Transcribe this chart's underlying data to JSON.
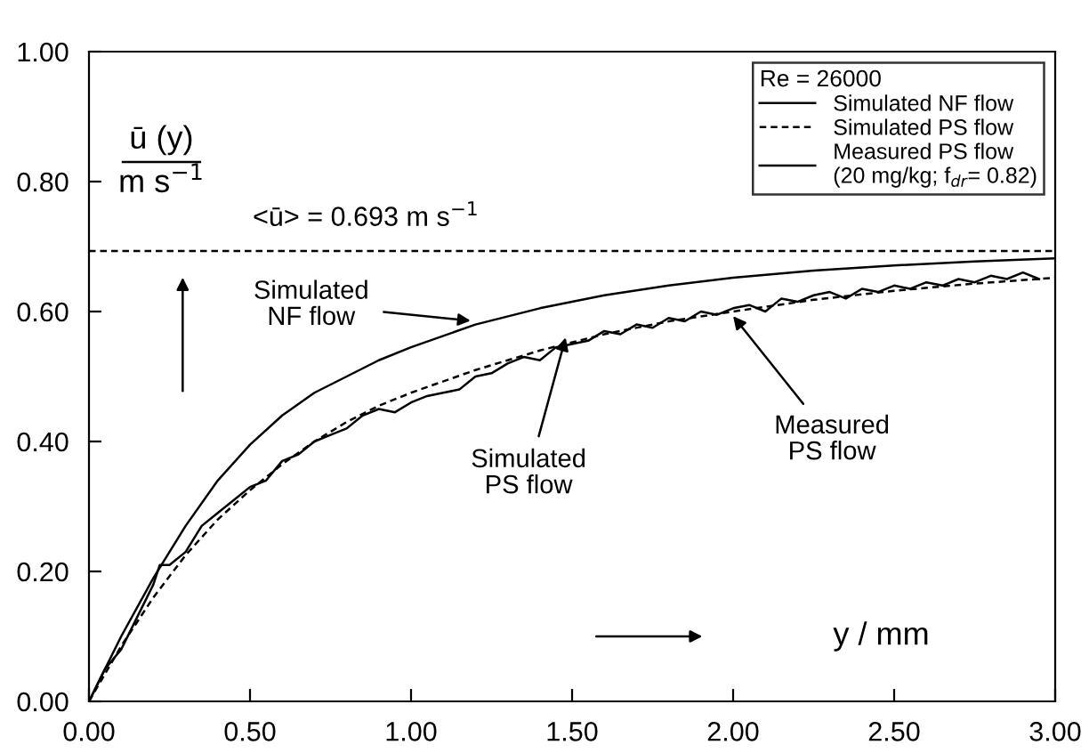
{
  "chart_data": {
    "type": "line",
    "xlabel": "y / mm",
    "ylabel": "ū (y)\nm s$^{−1}$",
    "legend_title": "Re = 26000",
    "legend": "top right",
    "grid": false,
    "marker": "none",
    "xlim": [
      0,
      3
    ],
    "ylim": [
      0,
      1
    ],
    "xticks": [
      {
        "value": 0,
        "label": "0.00"
      },
      {
        "value": 0.5,
        "label": "0.50"
      },
      {
        "value": 1,
        "label": "1.00"
      },
      {
        "value": 1.5,
        "label": "1.50"
      },
      {
        "value": 2,
        "label": "2.00"
      },
      {
        "value": 2.5,
        "label": "2.50"
      },
      {
        "value": 3,
        "label": "3.00"
      }
    ],
    "yticks": [
      {
        "value": 0,
        "label": "0.00"
      },
      {
        "value": 0.2,
        "label": "0.20"
      },
      {
        "value": 0.4,
        "label": "0.40"
      },
      {
        "value": 0.6,
        "label": "0.60"
      },
      {
        "value": 0.8,
        "label": "0.80"
      },
      {
        "value": 1,
        "label": "1.00"
      }
    ],
    "series": [
      {
        "name": "Simulated NF flow",
        "color": "#000000",
        "line_style": "solid",
        "x": [
          0,
          0.1,
          0.2,
          0.3,
          0.4,
          0.5,
          0.6,
          0.7,
          0.8,
          0.9,
          1.0,
          1.2,
          1.4,
          1.6,
          1.8,
          2.0,
          2.25,
          2.5,
          2.75,
          3.0
        ],
        "values": [
          0,
          0.1,
          0.19,
          0.27,
          0.34,
          0.395,
          0.44,
          0.475,
          0.5,
          0.525,
          0.545,
          0.58,
          0.605,
          0.625,
          0.64,
          0.652,
          0.663,
          0.671,
          0.677,
          0.682
        ]
      },
      {
        "name": "Simulated PS flow",
        "color": "#000000",
        "line_style": "dashed",
        "x": [
          0,
          0.1,
          0.2,
          0.3,
          0.4,
          0.5,
          0.6,
          0.7,
          0.8,
          0.9,
          1.0,
          1.2,
          1.4,
          1.6,
          1.8,
          2.0,
          2.25,
          2.5,
          2.75,
          3.0
        ],
        "values": [
          0,
          0.085,
          0.16,
          0.225,
          0.28,
          0.325,
          0.365,
          0.4,
          0.43,
          0.455,
          0.475,
          0.51,
          0.54,
          0.565,
          0.585,
          0.6,
          0.618,
          0.632,
          0.643,
          0.652
        ]
      },
      {
        "name": "Measured PS flow\n(20 mg/kg; f$_{dr}$= 0.82)",
        "color": "#000000",
        "line_style": "solid",
        "x": [
          0,
          0.05,
          0.1,
          0.15,
          0.2,
          0.22,
          0.25,
          0.3,
          0.35,
          0.4,
          0.45,
          0.5,
          0.55,
          0.6,
          0.65,
          0.7,
          0.75,
          0.8,
          0.85,
          0.9,
          0.95,
          1.0,
          1.05,
          1.1,
          1.15,
          1.2,
          1.25,
          1.3,
          1.35,
          1.4,
          1.45,
          1.5,
          1.55,
          1.6,
          1.65,
          1.7,
          1.75,
          1.8,
          1.85,
          1.9,
          1.95,
          2.0,
          2.05,
          2.1,
          2.15,
          2.2,
          2.25,
          2.3,
          2.35,
          2.4,
          2.45,
          2.5,
          2.55,
          2.6,
          2.65,
          2.7,
          2.75,
          2.8,
          2.85,
          2.9,
          2.95
        ],
        "values": [
          0,
          0.05,
          0.08,
          0.13,
          0.18,
          0.21,
          0.21,
          0.23,
          0.27,
          0.29,
          0.31,
          0.33,
          0.34,
          0.37,
          0.38,
          0.4,
          0.41,
          0.42,
          0.44,
          0.45,
          0.445,
          0.46,
          0.47,
          0.475,
          0.48,
          0.5,
          0.505,
          0.52,
          0.53,
          0.525,
          0.545,
          0.55,
          0.555,
          0.57,
          0.565,
          0.58,
          0.575,
          0.59,
          0.585,
          0.6,
          0.595,
          0.605,
          0.61,
          0.6,
          0.62,
          0.615,
          0.625,
          0.63,
          0.62,
          0.635,
          0.63,
          0.64,
          0.635,
          0.645,
          0.64,
          0.65,
          0.645,
          0.655,
          0.65,
          0.66,
          0.65
        ]
      }
    ],
    "ref_lines": [
      {
        "axis": "y",
        "value": 0.693,
        "label": "<ū> = 0.693 m s$^{−1}$",
        "color": "#000000",
        "line_style": "dashed"
      }
    ],
    "annotations": [
      "Simulated\nNF flow",
      {
        "text": "Simulated\nPS flow",
        "x": 1.48,
        "y": 0.56
      },
      {
        "text": "Measured\nPS flow",
        "x": 2.0,
        "y": 0.593
      }
    ]
  }
}
